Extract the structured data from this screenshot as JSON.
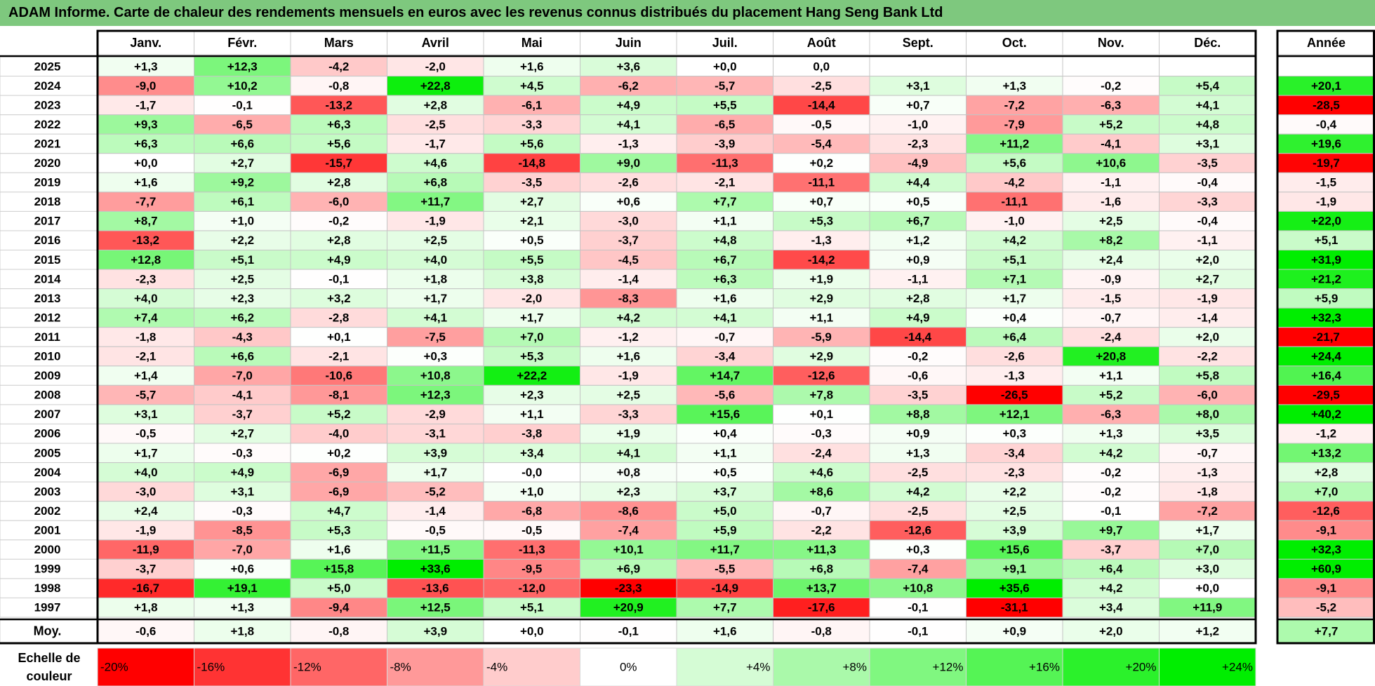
{
  "title": "ADAM Informe. Carte de chaleur des rendements mensuels en euros avec les revenus connus distribués du placement Hang Seng Bank Ltd",
  "chart_data": {
    "type": "heatmap",
    "title": "ADAM Informe. Carte de chaleur des rendements mensuels en euros avec les revenus connus distribués du placement Hang Seng Bank Ltd",
    "months": [
      "Janv.",
      "Févr.",
      "Mars",
      "Avril",
      "Mai",
      "Juin",
      "Juil.",
      "Août",
      "Sept.",
      "Oct.",
      "Nov.",
      "Déc."
    ],
    "year_header": "Année",
    "rows": [
      {
        "year": "2025",
        "months": [
          "+1,3",
          "+12,3",
          "-4,2",
          "-2,0",
          "+1,6",
          "+3,6",
          "+0,0",
          "0,0",
          "",
          "",
          "",
          ""
        ],
        "annual": ""
      },
      {
        "year": "2024",
        "months": [
          "-9,0",
          "+10,2",
          "-0,8",
          "+22,8",
          "+4,5",
          "-6,2",
          "-5,7",
          "-2,5",
          "+3,1",
          "+1,3",
          "-0,2",
          "+5,4"
        ],
        "annual": "+20,1"
      },
      {
        "year": "2023",
        "months": [
          "-1,7",
          "-0,1",
          "-13,2",
          "+2,8",
          "-6,1",
          "+4,9",
          "+5,5",
          "-14,4",
          "+0,7",
          "-7,2",
          "-6,3",
          "+4,1"
        ],
        "annual": "-28,5"
      },
      {
        "year": "2022",
        "months": [
          "+9,3",
          "-6,5",
          "+6,3",
          "-2,5",
          "-3,3",
          "+4,1",
          "-6,5",
          "-0,5",
          "-1,0",
          "-7,9",
          "+5,2",
          "+4,8"
        ],
        "annual": "-0,4"
      },
      {
        "year": "2021",
        "months": [
          "+6,3",
          "+6,6",
          "+5,6",
          "-1,7",
          "+5,6",
          "-1,3",
          "-3,9",
          "-5,4",
          "-2,3",
          "+11,2",
          "-4,1",
          "+3,1"
        ],
        "annual": "+19,6"
      },
      {
        "year": "2020",
        "months": [
          "+0,0",
          "+2,7",
          "-15,7",
          "+4,6",
          "-14,8",
          "+9,0",
          "-11,3",
          "+0,2",
          "-4,9",
          "+5,6",
          "+10,6",
          "-3,5"
        ],
        "annual": "-19,7"
      },
      {
        "year": "2019",
        "months": [
          "+1,6",
          "+9,2",
          "+2,8",
          "+6,8",
          "-3,5",
          "-2,6",
          "-2,1",
          "-11,1",
          "+4,4",
          "-4,2",
          "-1,1",
          "-0,4"
        ],
        "annual": "-1,5"
      },
      {
        "year": "2018",
        "months": [
          "-7,7",
          "+6,1",
          "-6,0",
          "+11,7",
          "+2,7",
          "+0,6",
          "+7,7",
          "+0,7",
          "+0,5",
          "-11,1",
          "-1,6",
          "-3,3"
        ],
        "annual": "-1,9"
      },
      {
        "year": "2017",
        "months": [
          "+8,7",
          "+1,0",
          "-0,2",
          "-1,9",
          "+2,1",
          "-3,0",
          "+1,1",
          "+5,3",
          "+6,7",
          "-1,0",
          "+2,5",
          "-0,4"
        ],
        "annual": "+22,0"
      },
      {
        "year": "2016",
        "months": [
          "-13,2",
          "+2,2",
          "+2,8",
          "+2,5",
          "+0,5",
          "-3,7",
          "+4,8",
          "-1,3",
          "+1,2",
          "+4,2",
          "+8,2",
          "-1,1"
        ],
        "annual": "+5,1"
      },
      {
        "year": "2015",
        "months": [
          "+12,8",
          "+5,1",
          "+4,9",
          "+4,0",
          "+5,5",
          "-4,5",
          "+6,7",
          "-14,2",
          "+0,9",
          "+5,1",
          "+2,4",
          "+2,0"
        ],
        "annual": "+31,9"
      },
      {
        "year": "2014",
        "months": [
          "-2,3",
          "+2,5",
          "-0,1",
          "+1,8",
          "+3,8",
          "-1,4",
          "+6,3",
          "+1,9",
          "-1,1",
          "+7,1",
          "-0,9",
          "+2,7"
        ],
        "annual": "+21,2"
      },
      {
        "year": "2013",
        "months": [
          "+4,0",
          "+2,3",
          "+3,2",
          "+1,7",
          "-2,0",
          "-8,3",
          "+1,6",
          "+2,9",
          "+2,8",
          "+1,7",
          "-1,5",
          "-1,9"
        ],
        "annual": "+5,9"
      },
      {
        "year": "2012",
        "months": [
          "+7,4",
          "+6,2",
          "-2,8",
          "+4,1",
          "+1,7",
          "+4,2",
          "+4,1",
          "+1,1",
          "+4,9",
          "+0,4",
          "-0,7",
          "-1,4"
        ],
        "annual": "+32,3"
      },
      {
        "year": "2011",
        "months": [
          "-1,8",
          "-4,3",
          "+0,1",
          "-7,5",
          "+7,0",
          "-1,2",
          "-0,7",
          "-5,9",
          "-14,4",
          "+6,4",
          "-2,4",
          "+2,0"
        ],
        "annual": "-21,7"
      },
      {
        "year": "2010",
        "months": [
          "-2,1",
          "+6,6",
          "-2,1",
          "+0,3",
          "+5,3",
          "+1,6",
          "-3,4",
          "+2,9",
          "-0,2",
          "-2,6",
          "+20,8",
          "-2,2"
        ],
        "annual": "+24,4"
      },
      {
        "year": "2009",
        "months": [
          "+1,4",
          "-7,0",
          "-10,6",
          "+10,8",
          "+22,2",
          "-1,9",
          "+14,7",
          "-12,6",
          "-0,6",
          "-1,3",
          "+1,1",
          "+5,8"
        ],
        "annual": "+16,4"
      },
      {
        "year": "2008",
        "months": [
          "-5,7",
          "-4,1",
          "-8,1",
          "+12,3",
          "+2,3",
          "+2,5",
          "-5,6",
          "+7,8",
          "-3,5",
          "-26,5",
          "+5,2",
          "-6,0"
        ],
        "annual": "-29,5"
      },
      {
        "year": "2007",
        "months": [
          "+3,1",
          "-3,7",
          "+5,2",
          "-2,9",
          "+1,1",
          "-3,3",
          "+15,6",
          "+0,1",
          "+8,8",
          "+12,1",
          "-6,3",
          "+8,0"
        ],
        "annual": "+40,2"
      },
      {
        "year": "2006",
        "months": [
          "-0,5",
          "+2,7",
          "-4,0",
          "-3,1",
          "-3,8",
          "+1,9",
          "+0,4",
          "-0,3",
          "+0,9",
          "+0,3",
          "+1,3",
          "+3,5"
        ],
        "annual": "-1,2"
      },
      {
        "year": "2005",
        "months": [
          "+1,7",
          "-0,3",
          "+0,2",
          "+3,9",
          "+3,4",
          "+4,1",
          "+1,1",
          "-2,4",
          "+1,3",
          "-3,4",
          "+4,2",
          "-0,7"
        ],
        "annual": "+13,2"
      },
      {
        "year": "2004",
        "months": [
          "+4,0",
          "+4,9",
          "-6,9",
          "+1,7",
          "-0,0",
          "+0,8",
          "+0,5",
          "+4,6",
          "-2,5",
          "-2,3",
          "-0,2",
          "-1,3"
        ],
        "annual": "+2,8"
      },
      {
        "year": "2003",
        "months": [
          "-3,0",
          "+3,1",
          "-6,9",
          "-5,2",
          "+1,0",
          "+2,3",
          "+3,7",
          "+8,6",
          "+4,2",
          "+2,2",
          "-0,2",
          "-1,8"
        ],
        "annual": "+7,0"
      },
      {
        "year": "2002",
        "months": [
          "+2,4",
          "-0,3",
          "+4,7",
          "-1,4",
          "-6,8",
          "-8,6",
          "+5,0",
          "-0,7",
          "-2,5",
          "+2,5",
          "-0,1",
          "-7,2"
        ],
        "annual": "-12,6"
      },
      {
        "year": "2001",
        "months": [
          "-1,9",
          "-8,5",
          "+5,3",
          "-0,5",
          "-0,5",
          "-7,4",
          "+5,9",
          "-2,2",
          "-12,6",
          "+3,9",
          "+9,7",
          "+1,7"
        ],
        "annual": "-9,1"
      },
      {
        "year": "2000",
        "months": [
          "-11,9",
          "-7,0",
          "+1,6",
          "+11,5",
          "-11,3",
          "+10,1",
          "+11,7",
          "+11,3",
          "+0,3",
          "+15,6",
          "-3,7",
          "+7,0"
        ],
        "annual": "+32,3"
      },
      {
        "year": "1999",
        "months": [
          "-3,7",
          "+0,6",
          "+15,8",
          "+33,6",
          "-9,5",
          "+6,9",
          "-5,5",
          "+6,8",
          "-7,4",
          "+9,1",
          "+6,4",
          "+3,0"
        ],
        "annual": "+60,9"
      },
      {
        "year": "1998",
        "months": [
          "-16,7",
          "+19,1",
          "+5,0",
          "-13,6",
          "-12,0",
          "-23,3",
          "-14,9",
          "+13,7",
          "+10,8",
          "+35,6",
          "+4,2",
          "+0,0"
        ],
        "annual": "-9,1"
      },
      {
        "year": "1997",
        "months": [
          "+1,8",
          "+1,3",
          "-9,4",
          "+12,5",
          "+5,1",
          "+20,9",
          "+7,7",
          "-17,6",
          "-0,1",
          "-31,1",
          "+3,4",
          "+11,9"
        ],
        "annual": "-5,2"
      }
    ],
    "average": {
      "label": "Moy.",
      "months": [
        "-0,6",
        "+1,8",
        "-0,8",
        "+3,9",
        "+0,0",
        "-0,1",
        "+1,6",
        "-0,8",
        "-0,1",
        "+0,9",
        "+2,0",
        "+1,2"
      ],
      "annual": "+7,7"
    },
    "scale": {
      "label_line1": "Echelle de",
      "label_line2": "couleur",
      "steps": [
        {
          "label": "-20%",
          "value": -20,
          "align": "left"
        },
        {
          "label": "-16%",
          "value": -16,
          "align": "left"
        },
        {
          "label": "-12%",
          "value": -12,
          "align": "left"
        },
        {
          "label": "-8%",
          "value": -8,
          "align": "left"
        },
        {
          "label": "-4%",
          "value": -4,
          "align": "left"
        },
        {
          "label": "0%",
          "value": 0,
          "align": "center"
        },
        {
          "label": "+4%",
          "value": 4,
          "align": "right"
        },
        {
          "label": "+8%",
          "value": 8,
          "align": "right"
        },
        {
          "label": "+12%",
          "value": 12,
          "align": "right"
        },
        {
          "label": "+16%",
          "value": 16,
          "align": "right"
        },
        {
          "label": "+20%",
          "value": 20,
          "align": "right"
        },
        {
          "label": "+24%",
          "value": 24,
          "align": "right"
        }
      ]
    },
    "colors": {
      "negative": "#ff0000",
      "positive": "#00ee00",
      "neutral": "#ffffff",
      "title_bar": "#7ec87e"
    },
    "color_range": [
      -20,
      24
    ]
  }
}
